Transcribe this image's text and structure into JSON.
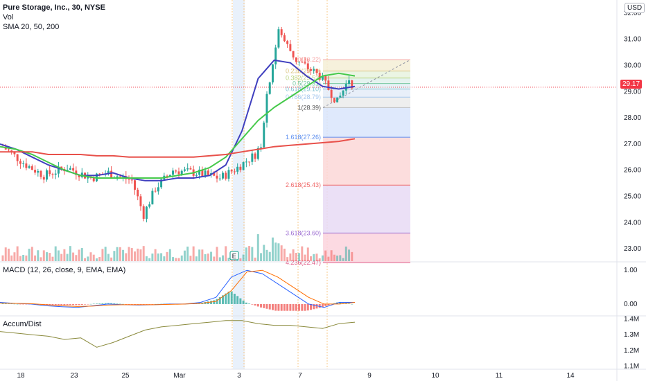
{
  "header": {
    "symbol": "Pure Storage, Inc., 30, NYSE",
    "vol_label": "Vol",
    "sma_label": "SMA 20, 50, 200",
    "currency": "USD"
  },
  "last_price": "29.17",
  "colors": {
    "up": "#26a69a",
    "down": "#ef5350",
    "sma20": "#3f3fbf",
    "sma50": "#45c94a",
    "sma200": "#e8504a",
    "macd": "#2962ff",
    "signal": "#ff6d00",
    "accum": "#8a8a3c",
    "price_line": "#f23645"
  },
  "earnings_marker": "E",
  "chart_data": [
    {
      "type": "line",
      "panel": "price",
      "ylim": [
        22.5,
        32.5
      ],
      "yticks": [
        "23.00",
        "24.00",
        "25.00",
        "26.00",
        "27.00",
        "28.00",
        "29.00",
        "30.00",
        "31.00",
        "32.00"
      ],
      "xticks": [
        "18",
        "23",
        "25",
        "Mar",
        "3",
        "7",
        "9",
        "10",
        "11",
        "14"
      ],
      "series": [
        {
          "name": "SMA 20",
          "values": [
            27.0,
            26.8,
            26.5,
            26.2,
            26.0,
            25.8,
            25.8,
            25.9,
            25.7,
            25.6,
            25.6,
            25.7,
            25.7,
            25.8,
            26.2,
            27.5,
            29.5,
            30.2,
            30.1,
            29.6,
            29.2,
            29.1,
            29.2
          ]
        },
        {
          "name": "SMA 50",
          "values": [
            26.9,
            26.8,
            26.6,
            26.3,
            26.0,
            25.8,
            25.7,
            25.7,
            25.7,
            25.7,
            25.7,
            25.8,
            25.9,
            26.1,
            26.5,
            27.2,
            27.9,
            28.4,
            28.8,
            29.2,
            29.6,
            29.7,
            29.6
          ]
        },
        {
          "name": "SMA 200",
          "values": [
            26.7,
            26.7,
            26.7,
            26.6,
            26.6,
            26.6,
            26.55,
            26.55,
            26.5,
            26.5,
            26.5,
            26.5,
            26.5,
            26.55,
            26.6,
            26.7,
            26.8,
            26.9,
            26.95,
            27.0,
            27.05,
            27.1,
            27.2
          ]
        }
      ],
      "fibonacci": [
        {
          "label": "0(30.22)",
          "value": 30.22
        },
        {
          "label": "0.236(29.79)",
          "value": 29.79
        },
        {
          "label": "0.382(29.52)",
          "value": 29.52
        },
        {
          "label": "0.5(29.31)",
          "value": 29.31
        },
        {
          "label": "0.618(29.10)",
          "value": 29.1
        },
        {
          "label": "0.786(28.79)",
          "value": 28.79
        },
        {
          "label": "1(28.39)",
          "value": 28.39
        },
        {
          "label": "1.618(27.26)",
          "value": 27.26
        },
        {
          "label": "2.618(25.43)",
          "value": 25.43
        },
        {
          "label": "3.618(23.60)",
          "value": 23.6
        },
        {
          "label": "4.236(22.47)",
          "value": 22.47
        }
      ]
    },
    {
      "type": "line",
      "panel": "macd",
      "title": "MACD (12, 26, close, 9, EMA, EMA)",
      "ylim": [
        -0.35,
        1.25
      ],
      "yticks": [
        "0.00",
        "1.00"
      ],
      "series": [
        {
          "name": "MACD",
          "values": [
            0.05,
            0.02,
            0.0,
            -0.05,
            -0.08,
            -0.1,
            -0.05,
            0.0,
            -0.02,
            -0.03,
            -0.02,
            0.0,
            0.0,
            0.05,
            0.2,
            0.8,
            1.0,
            0.9,
            0.6,
            0.3,
            0.0,
            -0.1,
            0.05,
            0.05
          ]
        },
        {
          "name": "Signal",
          "values": [
            0.03,
            0.02,
            0.01,
            -0.02,
            -0.05,
            -0.07,
            -0.06,
            -0.03,
            -0.02,
            -0.02,
            -0.02,
            -0.01,
            0.0,
            0.02,
            0.08,
            0.4,
            0.95,
            1.0,
            0.8,
            0.5,
            0.2,
            0.0,
            0.0,
            0.05
          ]
        }
      ]
    },
    {
      "type": "line",
      "panel": "accum",
      "title": "Accum/Dist",
      "ylim": [
        1.08,
        1.42
      ],
      "yticks": [
        "1.1M",
        "1.2M",
        "1.3M",
        "1.4M"
      ],
      "series": [
        {
          "name": "Accum/Dist",
          "values": [
            1.32,
            1.31,
            1.3,
            1.29,
            1.27,
            1.28,
            1.22,
            1.25,
            1.29,
            1.33,
            1.35,
            1.36,
            1.37,
            1.38,
            1.39,
            1.39,
            1.37,
            1.36,
            1.36,
            1.35,
            1.34,
            1.37,
            1.38
          ]
        }
      ]
    }
  ]
}
